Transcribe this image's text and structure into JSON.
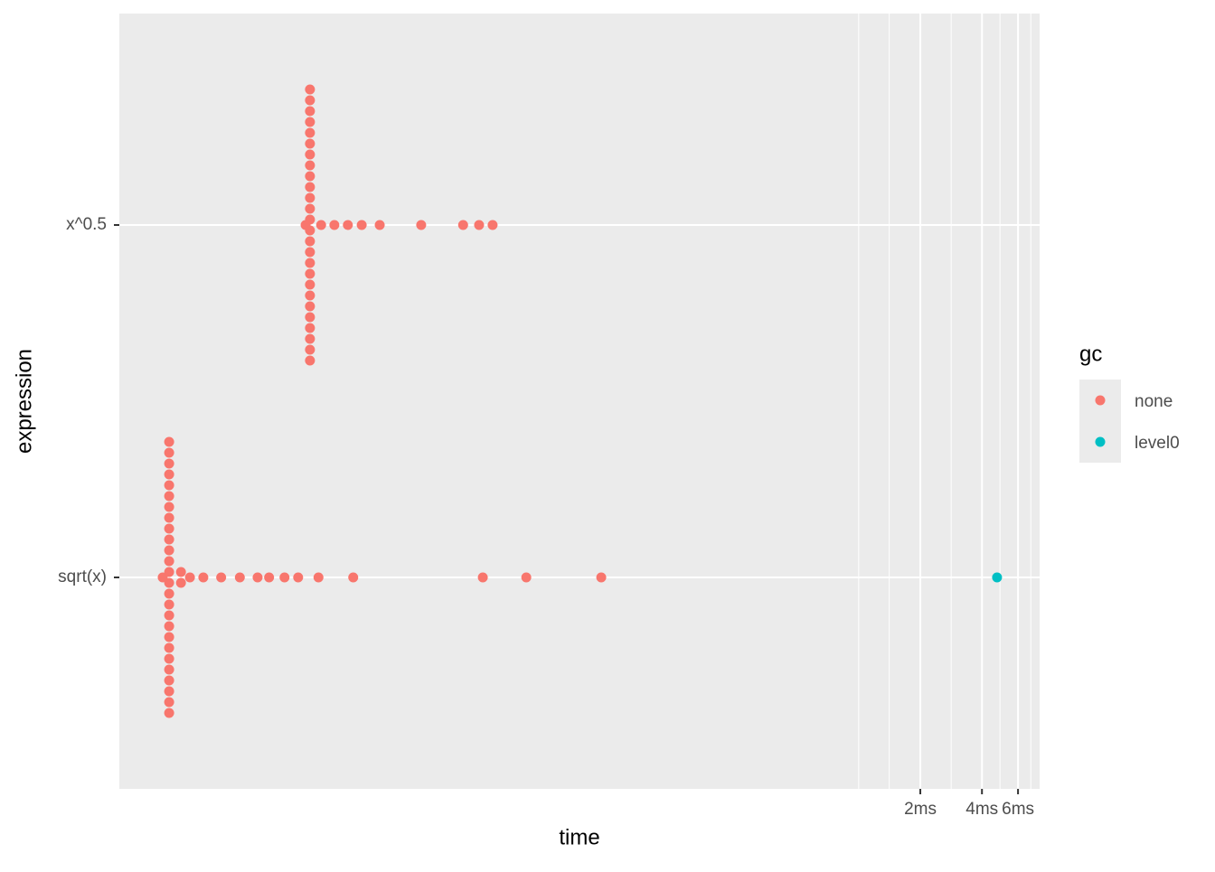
{
  "chart_data": {
    "type": "scatter",
    "x_label": "time",
    "y_label": "expression",
    "x_scale": "log",
    "xlim": [
      0.000245,
      7.65
    ],
    "xticks": [
      {
        "value": 2,
        "label": "2ms"
      },
      {
        "value": 4,
        "label": "4ms"
      },
      {
        "value": 6,
        "label": "6ms"
      }
    ],
    "x_minor": [
      1,
      1.41,
      2.83,
      4.9,
      6.93
    ],
    "categories": [
      "sqrt(x)",
      "x^0.5"
    ],
    "grid": true,
    "legend_title": "gc",
    "legend_position": "right",
    "series": [
      {
        "name": "none",
        "color": "#F8766D",
        "x": [
          0.000429,
          0.000429,
          0.000429,
          0.000429,
          0.000429,
          0.000429,
          0.000429,
          0.000429,
          0.000429,
          0.000429,
          0.000429,
          0.000429,
          0.000429,
          0.000429,
          0.000429,
          0.000429,
          0.000429,
          0.000429,
          0.000429,
          0.000429,
          0.000429,
          0.000429,
          0.000429,
          0.000429,
          0.000429,
          0.000429,
          0.000399,
          0.00049,
          0.00049,
          0.000542,
          0.00063,
          0.00077,
          0.00095,
          0.00116,
          0.00132,
          0.00157,
          0.00183,
          0.0023,
          0.0034,
          0.0146,
          0.0238,
          0.0553,
          0.00209,
          0.00209,
          0.00209,
          0.00209,
          0.00209,
          0.00209,
          0.00209,
          0.00209,
          0.00209,
          0.00209,
          0.00209,
          0.00209,
          0.00209,
          0.00209,
          0.00209,
          0.00209,
          0.00209,
          0.00209,
          0.00209,
          0.00209,
          0.00209,
          0.00209,
          0.00209,
          0.00209,
          0.00209,
          0.00209,
          0.00199,
          0.00237,
          0.00275,
          0.0032,
          0.00374,
          0.00458,
          0.0073,
          0.0117,
          0.014,
          0.0163
        ],
        "y": [
          "sqrt(x)",
          "sqrt(x)",
          "sqrt(x)",
          "sqrt(x)",
          "sqrt(x)",
          "sqrt(x)",
          "sqrt(x)",
          "sqrt(x)",
          "sqrt(x)",
          "sqrt(x)",
          "sqrt(x)",
          "sqrt(x)",
          "sqrt(x)",
          "sqrt(x)",
          "sqrt(x)",
          "sqrt(x)",
          "sqrt(x)",
          "sqrt(x)",
          "sqrt(x)",
          "sqrt(x)",
          "sqrt(x)",
          "sqrt(x)",
          "sqrt(x)",
          "sqrt(x)",
          "sqrt(x)",
          "sqrt(x)",
          "sqrt(x)",
          "sqrt(x)",
          "sqrt(x)",
          "sqrt(x)",
          "sqrt(x)",
          "sqrt(x)",
          "sqrt(x)",
          "sqrt(x)",
          "sqrt(x)",
          "sqrt(x)",
          "sqrt(x)",
          "sqrt(x)",
          "sqrt(x)",
          "sqrt(x)",
          "sqrt(x)",
          "sqrt(x)",
          "x^0.5",
          "x^0.5",
          "x^0.5",
          "x^0.5",
          "x^0.5",
          "x^0.5",
          "x^0.5",
          "x^0.5",
          "x^0.5",
          "x^0.5",
          "x^0.5",
          "x^0.5",
          "x^0.5",
          "x^0.5",
          "x^0.5",
          "x^0.5",
          "x^0.5",
          "x^0.5",
          "x^0.5",
          "x^0.5",
          "x^0.5",
          "x^0.5",
          "x^0.5",
          "x^0.5",
          "x^0.5",
          "x^0.5",
          "x^0.5",
          "x^0.5",
          "x^0.5",
          "x^0.5",
          "x^0.5",
          "x^0.5",
          "x^0.5",
          "x^0.5",
          "x^0.5",
          "x^0.5"
        ]
      },
      {
        "name": "level0",
        "color": "#00BFC4",
        "x": [
          4.74
        ],
        "y": [
          "sqrt(x)"
        ]
      }
    ]
  }
}
